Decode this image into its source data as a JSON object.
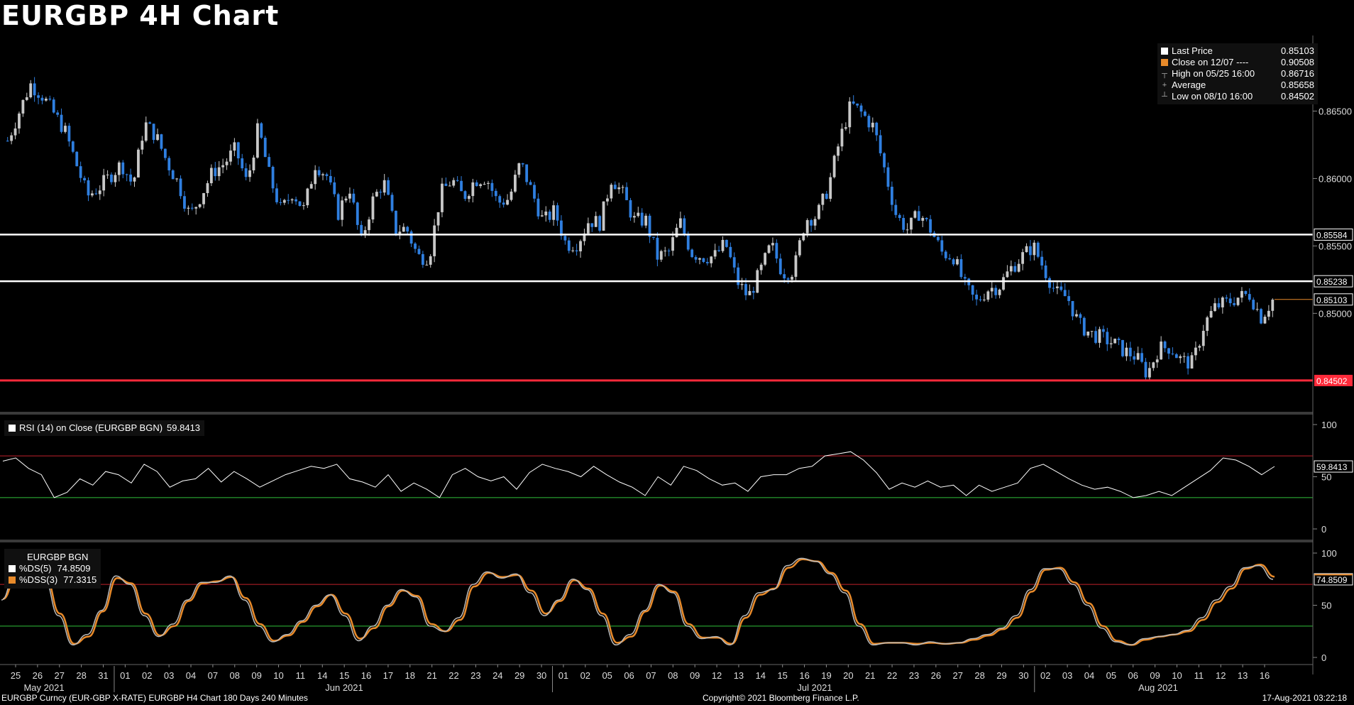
{
  "title": "EURGBP 4H Chart",
  "colors": {
    "background": "#000000",
    "up_candle": "#c8c8c8",
    "down_candle": "#2f7fe0",
    "resistance": "#ffffff",
    "support": "#ff2a3a",
    "rsi_upper": "#c0202a",
    "rsi_lower": "#2fbf3a",
    "dss_fast": "#ffffff",
    "dss_slow": "#e88a2a"
  },
  "price_legend": {
    "rows": [
      {
        "icon": "white-square-icon",
        "label": "Last Price",
        "value": "0.85103"
      },
      {
        "icon": "orange-square-icon",
        "label": "Close on 12/07 ---- ",
        "value": "0.90508"
      },
      {
        "icon": "high-marker-icon",
        "label": "High on 05/25 16:00",
        "value": "0.86716"
      },
      {
        "icon": "average-marker-icon",
        "label": "Average",
        "value": "0.85658"
      },
      {
        "icon": "low-marker-icon",
        "label": "Low on 08/10 16:00",
        "value": "0.84502"
      }
    ]
  },
  "rsi_legend": {
    "label": "RSI (14)  on Close (EURGBP BGN)",
    "value": "59.8413"
  },
  "dss_legend": {
    "title": "EURGBP BGN",
    "rows": [
      {
        "label": "%DS(5)",
        "value": "74.8509"
      },
      {
        "label": "%DSS(3)",
        "value": "77.3315"
      }
    ]
  },
  "footer": {
    "left": "EURGBP Curncy (EUR-GBP X-RATE) EURGBP H4 Chart 180 Days 240 Minutes",
    "center": "Copyright© 2021 Bloomberg Finance L.P.",
    "right": "17-Aug-2021 03:22:18"
  },
  "chart_data": [
    {
      "type": "candlestick",
      "title": "EURGBP 4H Chart",
      "y_ticks": [
        0.865,
        0.86,
        0.855,
        0.85
      ],
      "ylim": [
        0.8427,
        0.8705
      ],
      "horizontal_lines": [
        {
          "value": 0.85584,
          "label": "0.85584",
          "role": "resistance"
        },
        {
          "value": 0.85238,
          "label": "0.85238",
          "role": "resistance"
        },
        {
          "value": 0.84502,
          "label": "0.84502",
          "role": "support"
        }
      ],
      "last_price": 0.85103,
      "close_path": [
        [
          0,
          0.8628
        ],
        [
          2,
          0.867
        ],
        [
          3,
          0.8662
        ],
        [
          5,
          0.8636
        ],
        [
          7,
          0.8587
        ],
        [
          8,
          0.8593
        ],
        [
          10,
          0.8611
        ],
        [
          11,
          0.8595
        ],
        [
          12,
          0.8641
        ],
        [
          13,
          0.8632
        ],
        [
          14,
          0.8612
        ],
        [
          15,
          0.8596
        ],
        [
          16,
          0.8572
        ],
        [
          17,
          0.8588
        ],
        [
          18,
          0.8605
        ],
        [
          19,
          0.8611
        ],
        [
          20,
          0.8622
        ],
        [
          21,
          0.8596
        ],
        [
          22,
          0.8638
        ],
        [
          23,
          0.8601
        ],
        [
          24,
          0.8576
        ],
        [
          25,
          0.859
        ],
        [
          26,
          0.8577
        ],
        [
          27,
          0.8611
        ],
        [
          28,
          0.8602
        ],
        [
          29,
          0.8574
        ],
        [
          30,
          0.8594
        ],
        [
          31,
          0.8552
        ],
        [
          32,
          0.8583
        ],
        [
          33,
          0.8598
        ],
        [
          34,
          0.8562
        ],
        [
          35,
          0.8563
        ],
        [
          36,
          0.8542
        ],
        [
          37,
          0.8542
        ],
        [
          38,
          0.8589
        ],
        [
          39,
          0.8599
        ],
        [
          40,
          0.8586
        ],
        [
          41,
          0.8599
        ],
        [
          42,
          0.8601
        ],
        [
          43,
          0.8582
        ],
        [
          44,
          0.8585
        ],
        [
          45,
          0.8612
        ],
        [
          46,
          0.859
        ],
        [
          47,
          0.8568
        ],
        [
          48,
          0.8576
        ],
        [
          49,
          0.8551
        ],
        [
          50,
          0.8552
        ],
        [
          51,
          0.8569
        ],
        [
          52,
          0.8567
        ],
        [
          53,
          0.8601
        ],
        [
          54,
          0.8588
        ],
        [
          55,
          0.8569
        ],
        [
          56,
          0.8569
        ],
        [
          57,
          0.8542
        ],
        [
          58,
          0.8545
        ],
        [
          59,
          0.8568
        ],
        [
          60,
          0.8545
        ],
        [
          61,
          0.8542
        ],
        [
          62,
          0.8542
        ],
        [
          63,
          0.8552
        ],
        [
          64,
          0.8524
        ],
        [
          65,
          0.8512
        ],
        [
          66,
          0.853
        ],
        [
          67,
          0.8551
        ],
        [
          68,
          0.853
        ],
        [
          69,
          0.8532
        ],
        [
          70,
          0.857
        ],
        [
          71,
          0.8572
        ],
        [
          72,
          0.8593
        ],
        [
          73,
          0.8628
        ],
        [
          74,
          0.8655
        ],
        [
          75,
          0.8648
        ],
        [
          76,
          0.8638
        ],
        [
          77,
          0.8605
        ],
        [
          78,
          0.8572
        ],
        [
          79,
          0.8562
        ],
        [
          80,
          0.8575
        ],
        [
          81,
          0.8562
        ],
        [
          82,
          0.8545
        ],
        [
          83,
          0.8542
        ],
        [
          84,
          0.852
        ],
        [
          85,
          0.8508
        ],
        [
          86,
          0.8518
        ],
        [
          87,
          0.852
        ],
        [
          88,
          0.8533
        ],
        [
          89,
          0.8542
        ],
        [
          90,
          0.855
        ],
        [
          91,
          0.8532
        ],
        [
          92,
          0.8515
        ],
        [
          93,
          0.8512
        ],
        [
          94,
          0.8492
        ],
        [
          95,
          0.8485
        ],
        [
          96,
          0.8482
        ],
        [
          97,
          0.8478
        ],
        [
          98,
          0.8472
        ],
        [
          99,
          0.8468
        ],
        [
          100,
          0.8455
        ],
        [
          101,
          0.8474
        ],
        [
          102,
          0.8475
        ],
        [
          103,
          0.8465
        ],
        [
          104,
          0.8463
        ],
        [
          105,
          0.8492
        ],
        [
          106,
          0.8505
        ],
        [
          107,
          0.8508
        ],
        [
          108,
          0.8512
        ],
        [
          109,
          0.8514
        ],
        [
          110,
          0.8497
        ],
        [
          111,
          0.851
        ]
      ]
    },
    {
      "type": "line",
      "name": "RSI (14)",
      "ylim": [
        0,
        100
      ],
      "y_ticks": [
        100,
        50,
        0
      ],
      "levels": [
        70,
        30
      ],
      "last": 59.8413,
      "path": [
        [
          0,
          65
        ],
        [
          1,
          68
        ],
        [
          2,
          58
        ],
        [
          3,
          52
        ],
        [
          4,
          30
        ],
        [
          5,
          35
        ],
        [
          6,
          48
        ],
        [
          7,
          42
        ],
        [
          8,
          55
        ],
        [
          9,
          52
        ],
        [
          10,
          44
        ],
        [
          11,
          62
        ],
        [
          12,
          55
        ],
        [
          13,
          40
        ],
        [
          14,
          46
        ],
        [
          15,
          48
        ],
        [
          16,
          58
        ],
        [
          17,
          45
        ],
        [
          18,
          55
        ],
        [
          19,
          48
        ],
        [
          20,
          40
        ],
        [
          21,
          46
        ],
        [
          22,
          52
        ],
        [
          23,
          56
        ],
        [
          24,
          60
        ],
        [
          25,
          58
        ],
        [
          26,
          62
        ],
        [
          27,
          48
        ],
        [
          28,
          45
        ],
        [
          29,
          40
        ],
        [
          30,
          52
        ],
        [
          31,
          36
        ],
        [
          32,
          44
        ],
        [
          33,
          38
        ],
        [
          34,
          30
        ],
        [
          35,
          52
        ],
        [
          36,
          58
        ],
        [
          37,
          50
        ],
        [
          38,
          46
        ],
        [
          39,
          50
        ],
        [
          40,
          38
        ],
        [
          41,
          54
        ],
        [
          42,
          62
        ],
        [
          43,
          58
        ],
        [
          44,
          55
        ],
        [
          45,
          50
        ],
        [
          46,
          60
        ],
        [
          47,
          52
        ],
        [
          48,
          45
        ],
        [
          49,
          40
        ],
        [
          50,
          32
        ],
        [
          51,
          50
        ],
        [
          52,
          42
        ],
        [
          53,
          60
        ],
        [
          54,
          56
        ],
        [
          55,
          48
        ],
        [
          56,
          42
        ],
        [
          57,
          44
        ],
        [
          58,
          36
        ],
        [
          59,
          50
        ],
        [
          60,
          52
        ],
        [
          61,
          52
        ],
        [
          62,
          58
        ],
        [
          63,
          60
        ],
        [
          64,
          70
        ],
        [
          65,
          72
        ],
        [
          66,
          74
        ],
        [
          67,
          66
        ],
        [
          68,
          54
        ],
        [
          69,
          38
        ],
        [
          70,
          44
        ],
        [
          71,
          40
        ],
        [
          72,
          46
        ],
        [
          73,
          40
        ],
        [
          74,
          42
        ],
        [
          75,
          32
        ],
        [
          76,
          42
        ],
        [
          77,
          36
        ],
        [
          78,
          40
        ],
        [
          79,
          44
        ],
        [
          80,
          58
        ],
        [
          81,
          62
        ],
        [
          82,
          55
        ],
        [
          83,
          48
        ],
        [
          84,
          42
        ],
        [
          85,
          38
        ],
        [
          86,
          40
        ],
        [
          87,
          36
        ],
        [
          88,
          30
        ],
        [
          89,
          32
        ],
        [
          90,
          36
        ],
        [
          91,
          32
        ],
        [
          92,
          40
        ],
        [
          93,
          48
        ],
        [
          94,
          56
        ],
        [
          95,
          68
        ],
        [
          96,
          66
        ],
        [
          97,
          60
        ],
        [
          98,
          52
        ],
        [
          99,
          59.84
        ]
      ]
    },
    {
      "type": "line",
      "name": "Double Smoothed Stochastic",
      "ylim": [
        0,
        100
      ],
      "y_ticks": [
        100,
        50,
        0
      ],
      "levels": [
        70,
        30
      ],
      "series": [
        {
          "name": "%DS(5)",
          "last": 74.8509,
          "values": [
            55,
            82,
            95,
            75,
            40,
            12,
            22,
            45,
            78,
            70,
            40,
            20,
            32,
            55,
            72,
            72,
            78,
            55,
            30,
            15,
            22,
            35,
            50,
            60,
            40,
            16,
            30,
            50,
            65,
            58,
            30,
            25,
            38,
            70,
            82,
            76,
            80,
            62,
            40,
            55,
            75,
            65,
            40,
            12,
            22,
            45,
            70,
            62,
            30,
            18,
            20,
            12,
            40,
            62,
            65,
            88,
            95,
            92,
            80,
            62,
            30,
            12,
            14,
            14,
            12,
            15,
            13,
            14,
            18,
            22,
            28,
            40,
            65,
            85,
            85,
            70,
            50,
            28,
            15,
            12,
            18,
            20,
            22,
            26,
            38,
            55,
            68,
            86,
            88,
            74.85
          ]
        },
        {
          "name": "%DSS(3)",
          "last": 77.3315,
          "values": [
            56,
            80,
            94,
            76,
            42,
            13,
            20,
            44,
            76,
            71,
            42,
            21,
            30,
            54,
            71,
            73,
            77,
            57,
            32,
            16,
            21,
            34,
            49,
            60,
            42,
            18,
            28,
            49,
            64,
            59,
            32,
            25,
            36,
            68,
            81,
            77,
            79,
            64,
            42,
            54,
            74,
            66,
            42,
            14,
            20,
            44,
            69,
            63,
            32,
            19,
            19,
            13,
            38,
            60,
            66,
            86,
            94,
            92,
            81,
            64,
            32,
            13,
            14,
            14,
            13,
            14,
            13,
            14,
            17,
            21,
            27,
            38,
            63,
            84,
            86,
            72,
            52,
            30,
            16,
            12,
            17,
            20,
            22,
            25,
            36,
            53,
            66,
            85,
            89,
            77.33
          ]
        }
      ]
    }
  ],
  "x_axis": {
    "day_labels": [
      "25",
      "26",
      "27",
      "28",
      "31",
      "01",
      "02",
      "03",
      "04",
      "07",
      "08",
      "09",
      "10",
      "11",
      "14",
      "15",
      "16",
      "17",
      "18",
      "21",
      "22",
      "23",
      "24",
      "29",
      "30",
      "01",
      "02",
      "05",
      "06",
      "07",
      "08",
      "09",
      "12",
      "13",
      "14",
      "15",
      "16",
      "19",
      "20",
      "21",
      "22",
      "23",
      "26",
      "27",
      "28",
      "29",
      "30",
      "02",
      "03",
      "04",
      "05",
      "06",
      "09",
      "10",
      "11",
      "12",
      "13",
      "16"
    ],
    "month_labels": [
      "May 2021",
      "Jun 2021",
      "Jul 2021",
      "Aug 2021"
    ]
  }
}
